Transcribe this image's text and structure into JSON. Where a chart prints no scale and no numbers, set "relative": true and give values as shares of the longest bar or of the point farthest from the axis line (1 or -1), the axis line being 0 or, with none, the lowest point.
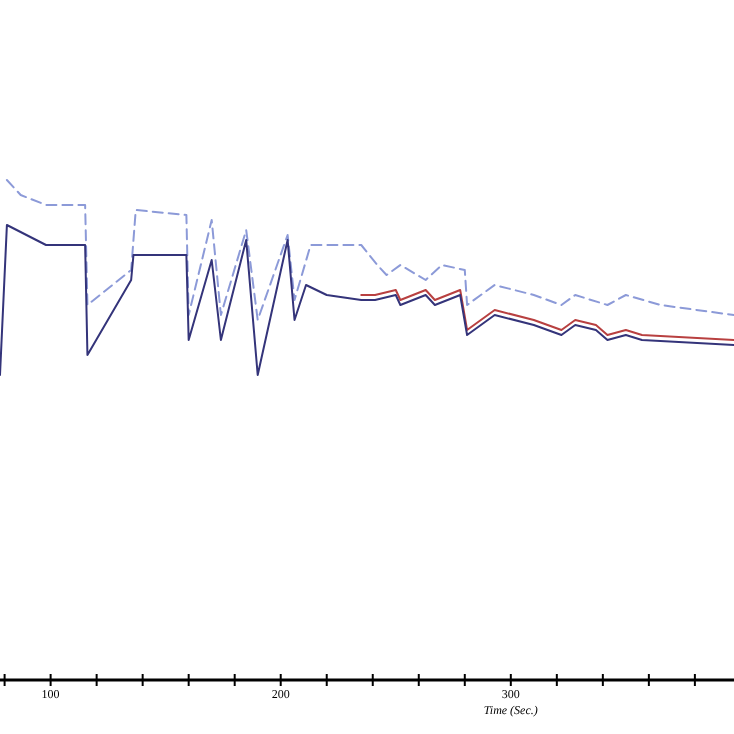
{
  "chart_data": {
    "type": "line",
    "xlabel": "Time (Sec.)",
    "relative": true,
    "tick_labels": "x",
    "grid": false,
    "legend": false,
    "marker": "none",
    "xlim": [
      78,
      397
    ],
    "xticks": [
      {
        "value": 80,
        "label": null
      },
      100,
      {
        "value": 120,
        "label": null
      },
      {
        "value": 140,
        "label": null
      },
      {
        "value": 160,
        "label": null
      },
      {
        "value": 180,
        "label": null
      },
      200,
      {
        "value": 220,
        "label": null
      },
      {
        "value": 240,
        "label": null
      },
      {
        "value": 260,
        "label": null
      },
      {
        "value": 280,
        "label": null
      },
      300,
      {
        "value": 320,
        "label": null
      },
      {
        "value": 340,
        "label": null
      },
      {
        "value": 360,
        "label": null
      },
      {
        "value": 380,
        "label": null
      }
    ],
    "series": [
      {
        "color": "#8c9ad8",
        "line_style": "dashed",
        "x": [
          81,
          87,
          98,
          115,
          116,
          135,
          137,
          159,
          160,
          170,
          174,
          185,
          190,
          203,
          206,
          213,
          235,
          242,
          246,
          252,
          263,
          270,
          280,
          281,
          293,
          310,
          322,
          328,
          342,
          350,
          365,
          397
        ],
        "values": [
          1.0,
          0.97,
          0.95,
          0.95,
          0.75,
          0.82,
          0.94,
          0.93,
          0.73,
          0.92,
          0.73,
          0.9,
          0.72,
          0.89,
          0.76,
          0.87,
          0.87,
          0.83,
          0.81,
          0.83,
          0.8,
          0.83,
          0.82,
          0.75,
          0.79,
          0.77,
          0.75,
          0.77,
          0.75,
          0.77,
          0.75,
          0.73
        ]
      },
      {
        "color": "#b84040",
        "line_style": "solid",
        "x": [
          235,
          241,
          250,
          252,
          263,
          267,
          278,
          281,
          293,
          310,
          322,
          328,
          337,
          342,
          350,
          357,
          397
        ],
        "values": [
          0.77,
          0.77,
          0.78,
          0.76,
          0.78,
          0.76,
          0.78,
          0.7,
          0.74,
          0.72,
          0.7,
          0.72,
          0.71,
          0.69,
          0.7,
          0.69,
          0.68
        ]
      },
      {
        "color": "#34347a",
        "line_style": "solid",
        "x": [
          78,
          81,
          98,
          115,
          116,
          135,
          136,
          159,
          160,
          170,
          174,
          185,
          190,
          203,
          206,
          211,
          220,
          235,
          241,
          250,
          252,
          263,
          267,
          278,
          281,
          293,
          310,
          322,
          328,
          337,
          342,
          350,
          357,
          397
        ],
        "values": [
          0.61,
          0.91,
          0.87,
          0.87,
          0.65,
          0.8,
          0.85,
          0.85,
          0.68,
          0.84,
          0.68,
          0.88,
          0.61,
          0.88,
          0.72,
          0.79,
          0.77,
          0.76,
          0.76,
          0.77,
          0.75,
          0.77,
          0.75,
          0.77,
          0.69,
          0.73,
          0.71,
          0.69,
          0.71,
          0.7,
          0.68,
          0.69,
          0.68,
          0.67
        ]
      }
    ]
  }
}
